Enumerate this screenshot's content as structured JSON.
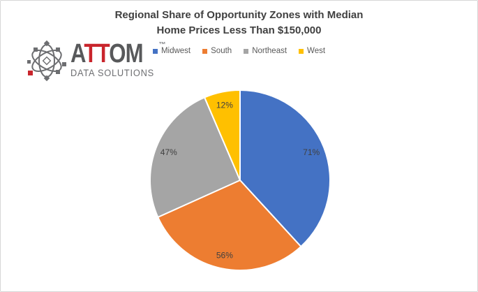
{
  "title": {
    "line1": "Regional Share of Opportunity Zones with Median",
    "line2": "Home Prices Less Than $150,000"
  },
  "logo": {
    "part1": "A",
    "part2": "TT",
    "part3": "OM",
    "trademark": "TM",
    "subtitle": "DATA SOLUTIONS",
    "gray_color": "#58595b",
    "red_color": "#c9252c"
  },
  "chart_data": {
    "type": "pie",
    "title": "Regional Share of Opportunity Zones with Median Home Prices Less Than $150,000",
    "categories": [
      "Midwest",
      "South",
      "Northeast",
      "West"
    ],
    "values": [
      71,
      56,
      47,
      12
    ],
    "labels": [
      "71%",
      "56%",
      "47%",
      "12%"
    ],
    "colors": [
      "#4472C4",
      "#ED7D31",
      "#A5A5A5",
      "#FFC000"
    ],
    "legend_position": "top",
    "start_angle_deg": 0,
    "direction": "clockwise",
    "slice_border_color": "#FFFFFF",
    "label_color": "#404040",
    "title_color": "#404040",
    "legend_text_color": "#595959"
  }
}
